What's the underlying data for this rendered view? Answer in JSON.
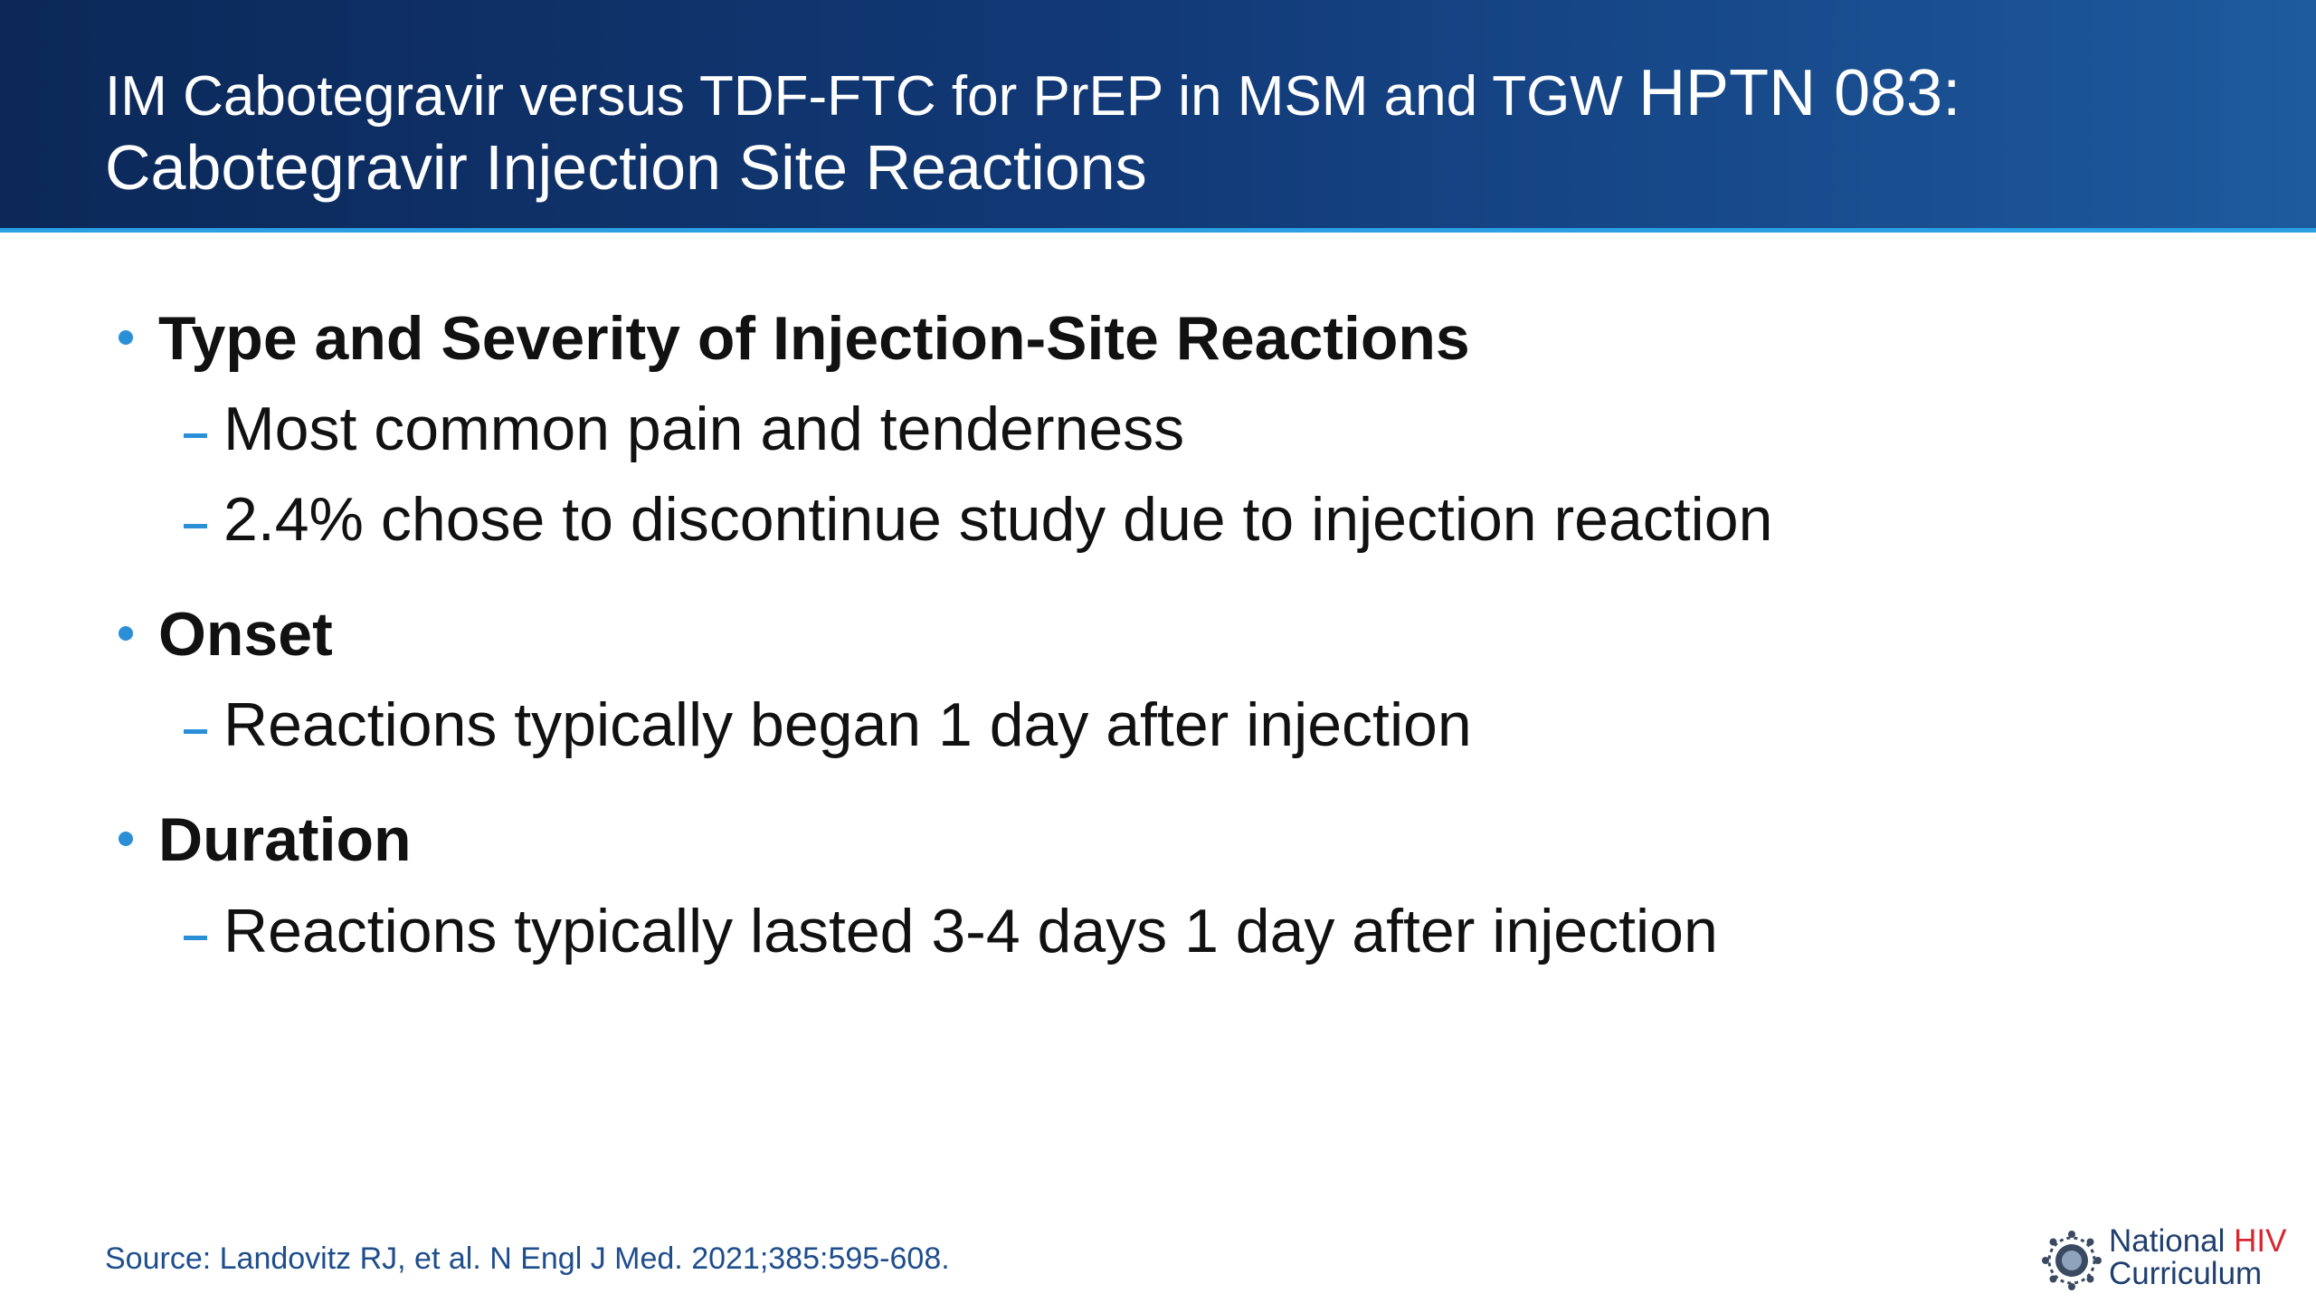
{
  "header": {
    "title_line1": "IM Cabotegravir versus TDF-FTC for PrEP in MSM and TGW",
    "title_line1_emphasis": "HPTN 083:",
    "title_line2": "Cabotegravir Injection Site Reactions"
  },
  "body": {
    "items": [
      {
        "heading": "Type and Severity of Injection-Site Reactions",
        "subitems": [
          "Most common pain and tenderness",
          "2.4% chose to discontinue study due to injection reaction"
        ]
      },
      {
        "heading": "Onset",
        "subitems": [
          "Reactions typically began 1 day after injection"
        ]
      },
      {
        "heading": "Duration",
        "subitems": [
          "Reactions typically lasted 3-4 days 1 day after injection"
        ]
      }
    ]
  },
  "footer": {
    "source": "Source: Landovitz RJ, et al. N Engl J Med. 2021;385:595-608."
  },
  "logo": {
    "line1": "National",
    "line1_accent": "HIV",
    "line2": "Curriculum"
  }
}
